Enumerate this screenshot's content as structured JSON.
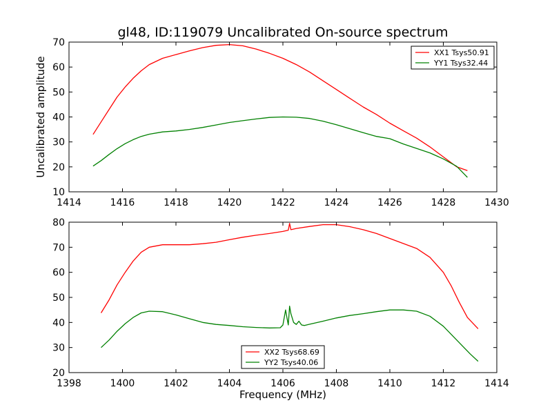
{
  "figure": {
    "title": "gl48, ID:119079 Uncalibrated On-source spectrum"
  },
  "chart_data": [
    {
      "type": "line",
      "title": "gl48, ID:119079 Uncalibrated On-source spectrum",
      "xlabel": "",
      "ylabel": "Uncalibrated amplitude",
      "xlim": [
        1414,
        1430
      ],
      "ylim": [
        10,
        70
      ],
      "xticks": [
        1414,
        1416,
        1418,
        1420,
        1422,
        1424,
        1426,
        1428,
        1430
      ],
      "yticks": [
        10,
        20,
        30,
        40,
        50,
        60,
        70
      ],
      "grid": false,
      "legend_position": "top-right",
      "series": [
        {
          "name": "XX1 Tsys50.91",
          "color": "#ff0000",
          "x": [
            1414.9,
            1415.2,
            1415.5,
            1415.8,
            1416.1,
            1416.4,
            1416.7,
            1417.0,
            1417.5,
            1418.0,
            1418.5,
            1419.0,
            1419.5,
            1420.0,
            1420.5,
            1421.0,
            1421.5,
            1422.0,
            1422.5,
            1423.0,
            1423.5,
            1424.0,
            1424.5,
            1425.0,
            1425.5,
            1426.0,
            1426.5,
            1427.0,
            1427.5,
            1428.0,
            1428.5,
            1428.9
          ],
          "y": [
            33,
            38,
            43,
            48,
            52,
            55.5,
            58.5,
            61,
            63.5,
            65,
            66.5,
            67.8,
            68.7,
            69,
            68.5,
            67.2,
            65.5,
            63.5,
            61,
            58,
            54.5,
            51,
            47.5,
            44,
            41,
            37.5,
            34.5,
            31.5,
            28,
            24,
            20,
            18.5
          ]
        },
        {
          "name": "YY1 Tsys32.44",
          "color": "#008000",
          "x": [
            1414.9,
            1415.2,
            1415.5,
            1415.8,
            1416.1,
            1416.4,
            1416.7,
            1417.0,
            1417.5,
            1418.0,
            1418.5,
            1419.0,
            1419.5,
            1420.0,
            1420.5,
            1421.0,
            1421.5,
            1422.0,
            1422.5,
            1423.0,
            1423.5,
            1424.0,
            1424.5,
            1425.0,
            1425.5,
            1426.0,
            1426.5,
            1427.0,
            1427.5,
            1428.0,
            1428.5,
            1428.9
          ],
          "y": [
            20.3,
            22.5,
            25,
            27.3,
            29.3,
            30.9,
            32.2,
            33.1,
            34,
            34.4,
            35,
            35.8,
            36.8,
            37.8,
            38.5,
            39.2,
            39.8,
            40,
            39.9,
            39.4,
            38.3,
            36.9,
            35.3,
            33.7,
            32.2,
            31.3,
            29.2,
            27.4,
            25.6,
            23.2,
            20.2,
            15.8
          ]
        }
      ]
    },
    {
      "type": "line",
      "title": "",
      "xlabel": "Frequency (MHz)",
      "ylabel": "",
      "xlim": [
        1398,
        1414
      ],
      "ylim": [
        20,
        80
      ],
      "xticks": [
        1398,
        1400,
        1402,
        1404,
        1406,
        1408,
        1410,
        1412,
        1414
      ],
      "yticks": [
        20,
        30,
        40,
        50,
        60,
        70,
        80
      ],
      "grid": false,
      "legend_position": "bottom-center",
      "series": [
        {
          "name": "XX2 Tsys68.69",
          "color": "#ff0000",
          "x": [
            1399.2,
            1399.5,
            1399.8,
            1400.1,
            1400.4,
            1400.7,
            1401.0,
            1401.5,
            1402.0,
            1402.5,
            1403.0,
            1403.5,
            1404.0,
            1404.5,
            1405.0,
            1405.5,
            1406.0,
            1406.2,
            1406.25,
            1406.3,
            1406.5,
            1407.0,
            1407.5,
            1408.0,
            1408.5,
            1409.0,
            1409.5,
            1410.0,
            1410.5,
            1411.0,
            1411.5,
            1412.0,
            1412.3,
            1412.6,
            1412.9,
            1413.3
          ],
          "y": [
            43.8,
            49,
            55,
            60,
            64.5,
            68,
            70,
            71,
            71,
            71,
            71.4,
            72,
            73,
            74,
            74.8,
            75.5,
            76.3,
            76.8,
            79.5,
            77,
            77.5,
            78.3,
            79,
            79,
            78.2,
            77,
            75.5,
            73.5,
            71.5,
            69.5,
            66,
            60,
            54.5,
            48,
            42,
            37.5
          ]
        },
        {
          "name": "YY2 Tsys40.06",
          "color": "#008000",
          "x": [
            1399.2,
            1399.5,
            1399.8,
            1400.1,
            1400.4,
            1400.7,
            1401.0,
            1401.5,
            1402.0,
            1402.5,
            1403.0,
            1403.5,
            1404.0,
            1404.5,
            1405.0,
            1405.5,
            1405.9,
            1406.0,
            1406.1,
            1406.15,
            1406.2,
            1406.25,
            1406.3,
            1406.4,
            1406.5,
            1406.6,
            1406.7,
            1406.8,
            1407.0,
            1407.5,
            1408.0,
            1408.5,
            1409.0,
            1409.5,
            1410.0,
            1410.5,
            1411.0,
            1411.5,
            1412.0,
            1412.5,
            1413.0,
            1413.3
          ],
          "y": [
            30,
            33,
            36.5,
            39.5,
            42,
            43.8,
            44.5,
            44.3,
            43,
            41.5,
            40,
            39.2,
            38.8,
            38.3,
            38,
            37.8,
            37.9,
            39,
            45,
            42,
            39,
            46.5,
            43.5,
            40,
            39.2,
            40.5,
            39,
            38.8,
            39.3,
            40.5,
            41.8,
            42.8,
            43.5,
            44.3,
            45,
            45,
            44.5,
            42.5,
            38.5,
            33,
            27.5,
            24.5
          ]
        }
      ]
    }
  ]
}
